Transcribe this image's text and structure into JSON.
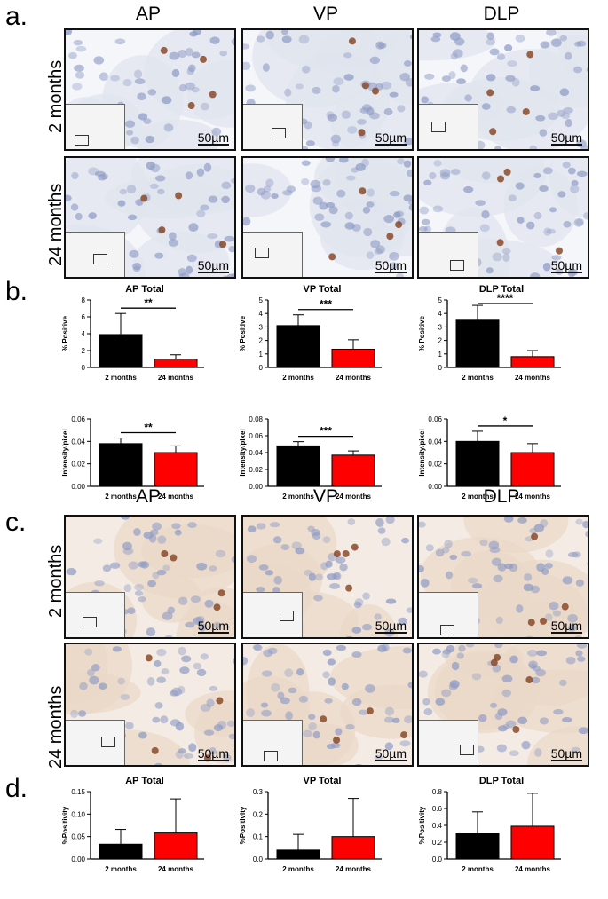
{
  "panels": {
    "a": "a.",
    "b": "b.",
    "c": "c.",
    "d": "d."
  },
  "columns": [
    "AP",
    "VP",
    "DLP"
  ],
  "rows": [
    "2 months",
    "24 months"
  ],
  "scale_label": "50µm",
  "colors": {
    "two_months": "#000000",
    "twentyfour_months": "#ff0000",
    "tissue": "#dfe4ee",
    "nuclei": "#8e9ac4",
    "stain_brown": "#8a4a2a",
    "stroma_c": "#ead8c8"
  },
  "chart_data": [
    {
      "type": "bar",
      "title": "AP Total",
      "ylabel": "% Positive",
      "categories": [
        "2 months",
        "24 months"
      ],
      "values": [
        3.9,
        1.0
      ],
      "errors": [
        2.5,
        0.5
      ],
      "ylim": [
        0,
        8
      ],
      "yticks": [
        "0",
        "2",
        "4",
        "6",
        "8"
      ],
      "sig": "**",
      "series_colors": [
        "#000000",
        "#ff0000"
      ]
    },
    {
      "type": "bar",
      "title": "VP Total",
      "ylabel": "% Positive",
      "categories": [
        "2 months",
        "24 months"
      ],
      "values": [
        3.1,
        1.35
      ],
      "errors": [
        0.8,
        0.7
      ],
      "ylim": [
        0,
        5
      ],
      "yticks": [
        "0",
        "1",
        "2",
        "3",
        "4",
        "5"
      ],
      "sig": "***",
      "series_colors": [
        "#000000",
        "#ff0000"
      ]
    },
    {
      "type": "bar",
      "title": "DLP Total",
      "ylabel": "% Positive",
      "categories": [
        "2 months",
        "24 months"
      ],
      "values": [
        3.5,
        0.8
      ],
      "errors": [
        1.1,
        0.45
      ],
      "ylim": [
        0,
        5
      ],
      "yticks": [
        "0",
        "1",
        "2",
        "3",
        "4",
        "5"
      ],
      "sig": "****",
      "series_colors": [
        "#000000",
        "#ff0000"
      ]
    },
    {
      "type": "bar",
      "title": "",
      "ylabel": "Intensity/pixel",
      "categories": [
        "2 months",
        "24 months"
      ],
      "values": [
        0.038,
        0.03
      ],
      "errors": [
        0.005,
        0.006
      ],
      "ylim": [
        0,
        0.06
      ],
      "yticks": [
        "0.00",
        "0.02",
        "0.04",
        "0.06"
      ],
      "sig": "**",
      "series_colors": [
        "#000000",
        "#ff0000"
      ]
    },
    {
      "type": "bar",
      "title": "",
      "ylabel": "Intensity/pixel",
      "categories": [
        "2 months",
        "24 months"
      ],
      "values": [
        0.048,
        0.037
      ],
      "errors": [
        0.005,
        0.005
      ],
      "ylim": [
        0,
        0.08
      ],
      "yticks": [
        "0.00",
        "0.02",
        "0.04",
        "0.06",
        "0.08"
      ],
      "sig": "***",
      "series_colors": [
        "#000000",
        "#ff0000"
      ]
    },
    {
      "type": "bar",
      "title": "",
      "ylabel": "Intensity/pixel",
      "categories": [
        "2 months",
        "24 months"
      ],
      "values": [
        0.04,
        0.03
      ],
      "errors": [
        0.009,
        0.008
      ],
      "ylim": [
        0,
        0.06
      ],
      "yticks": [
        "0.00",
        "0.02",
        "0.04",
        "0.06"
      ],
      "sig": "*",
      "series_colors": [
        "#000000",
        "#ff0000"
      ]
    },
    {
      "type": "bar",
      "title": "AP Total",
      "ylabel": "%Positivity",
      "categories": [
        "2 months",
        "24 months"
      ],
      "values": [
        0.033,
        0.058
      ],
      "errors": [
        0.033,
        0.076
      ],
      "ylim": [
        0,
        0.15
      ],
      "yticks": [
        "0.00",
        "0.05",
        "0.10",
        "0.15"
      ],
      "sig": "",
      "series_colors": [
        "#000000",
        "#ff0000"
      ]
    },
    {
      "type": "bar",
      "title": "VP Total",
      "ylabel": "%Positivity",
      "categories": [
        "2 months",
        "24 months"
      ],
      "values": [
        0.04,
        0.1
      ],
      "errors": [
        0.07,
        0.17
      ],
      "ylim": [
        0,
        0.3
      ],
      "yticks": [
        "0.0",
        "0.1",
        "0.2",
        "0.3"
      ],
      "sig": "",
      "series_colors": [
        "#000000",
        "#ff0000"
      ]
    },
    {
      "type": "bar",
      "title": "DLP Total",
      "ylabel": "%Positivity",
      "categories": [
        "2 months",
        "24 months"
      ],
      "values": [
        0.3,
        0.39
      ],
      "errors": [
        0.26,
        0.39
      ],
      "ylim": [
        0,
        0.8
      ],
      "yticks": [
        "0.0",
        "0.2",
        "0.4",
        "0.6",
        "0.8"
      ],
      "sig": "",
      "series_colors": [
        "#000000",
        "#ff0000"
      ]
    }
  ]
}
